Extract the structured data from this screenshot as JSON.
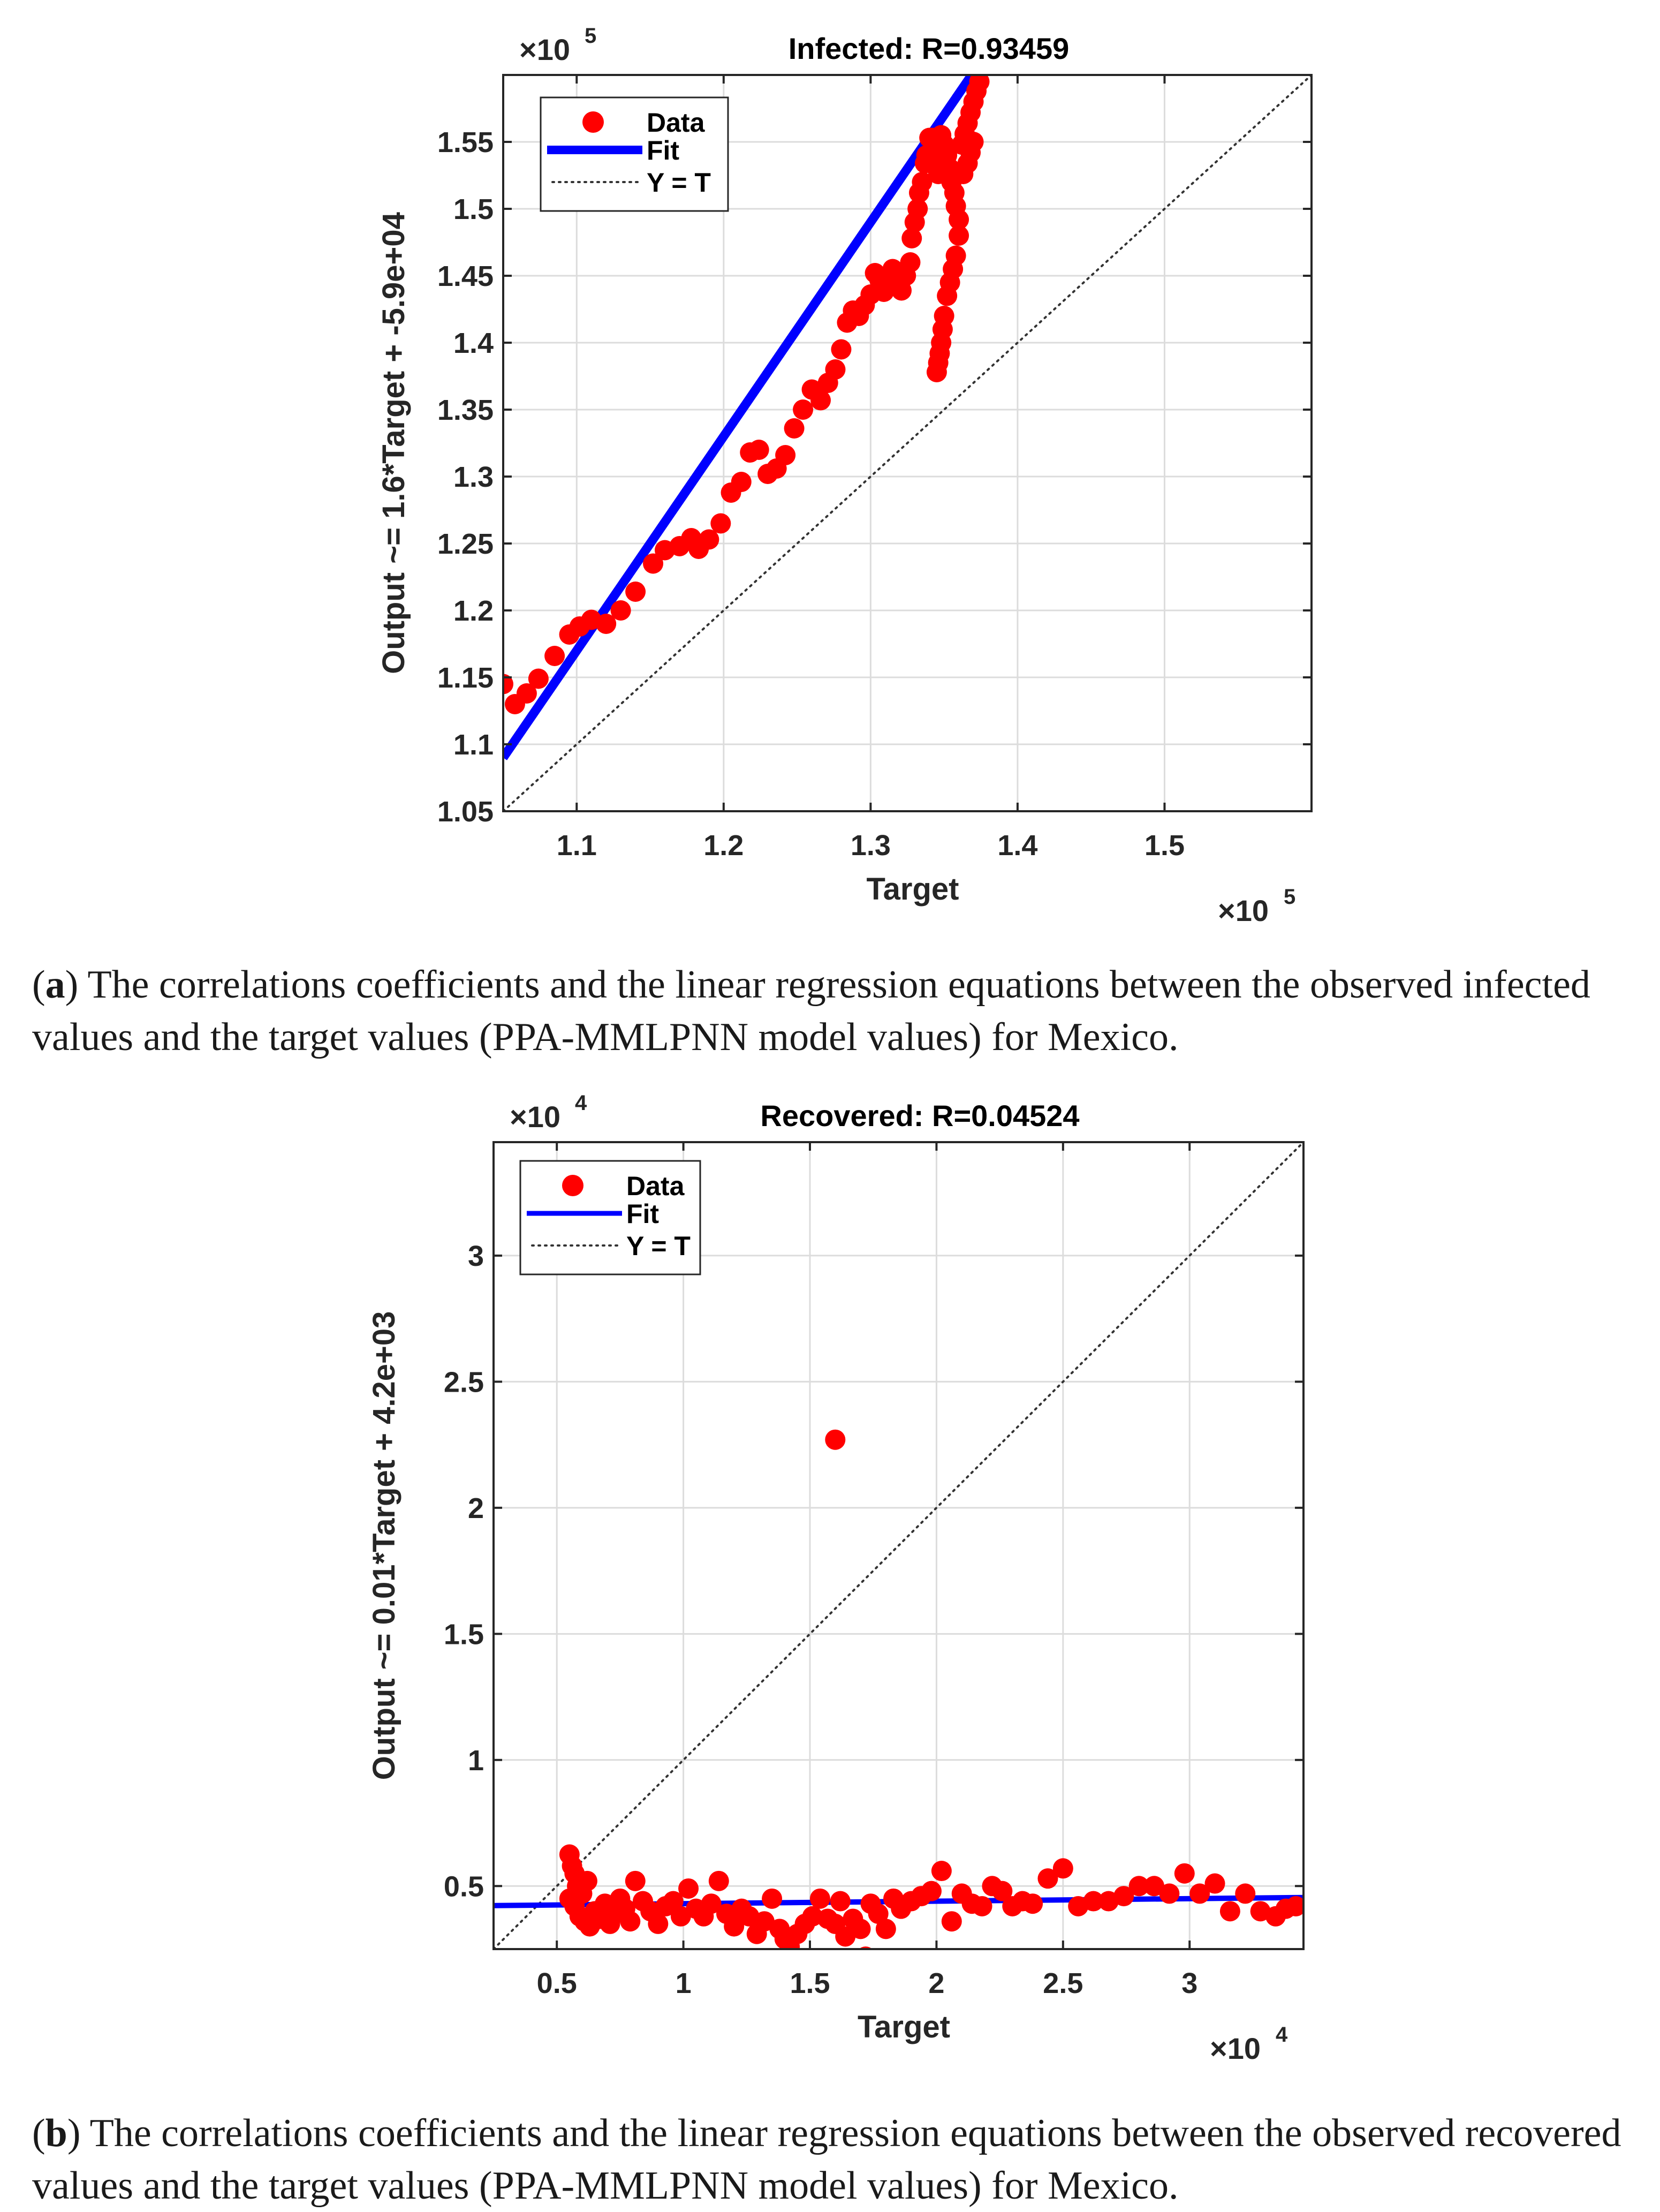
{
  "chart_data": [
    {
      "type": "scatter",
      "title": "Infected: R=0.93459",
      "xlabel": "Target",
      "ylabel": "Output ~= 1.6*Target + -5.9e+04",
      "x_multiplier": "×10",
      "x_exponent": "5",
      "y_multiplier": "×10",
      "y_exponent": "5",
      "xlim": [
        1.05,
        1.6
      ],
      "ylim": [
        1.05,
        1.6
      ],
      "xticks": [
        "1.1",
        "1.2",
        "1.3",
        "1.4",
        "1.5"
      ],
      "yticks": [
        "1.05",
        "1.1",
        "1.15",
        "1.2",
        "1.25",
        "1.3",
        "1.35",
        "1.4",
        "1.45",
        "1.5",
        "1.55"
      ],
      "legend": {
        "data": "Data",
        "fit": "Fit",
        "identity": "Y = T"
      },
      "fit": {
        "slope": 1.6,
        "intercept": -0.59
      },
      "series": [
        {
          "name": "Data",
          "color": "#ff0000",
          "points": [
            [
              1.05,
              1.145
            ],
            [
              1.058,
              1.13
            ],
            [
              1.066,
              1.138
            ],
            [
              1.074,
              1.149
            ],
            [
              1.085,
              1.166
            ],
            [
              1.095,
              1.182
            ],
            [
              1.102,
              1.188
            ],
            [
              1.11,
              1.193
            ],
            [
              1.12,
              1.19
            ],
            [
              1.13,
              1.2
            ],
            [
              1.14,
              1.214
            ],
            [
              1.152,
              1.235
            ],
            [
              1.16,
              1.245
            ],
            [
              1.17,
              1.248
            ],
            [
              1.178,
              1.254
            ],
            [
              1.183,
              1.246
            ],
            [
              1.19,
              1.253
            ],
            [
              1.198,
              1.265
            ],
            [
              1.205,
              1.288
            ],
            [
              1.212,
              1.296
            ],
            [
              1.218,
              1.318
            ],
            [
              1.224,
              1.32
            ],
            [
              1.23,
              1.302
            ],
            [
              1.236,
              1.306
            ],
            [
              1.242,
              1.316
            ],
            [
              1.248,
              1.336
            ],
            [
              1.254,
              1.35
            ],
            [
              1.26,
              1.365
            ],
            [
              1.266,
              1.357
            ],
            [
              1.271,
              1.37
            ],
            [
              1.276,
              1.38
            ],
            [
              1.28,
              1.395
            ],
            [
              1.284,
              1.415
            ],
            [
              1.288,
              1.424
            ],
            [
              1.292,
              1.42
            ],
            [
              1.296,
              1.428
            ],
            [
              1.3,
              1.436
            ],
            [
              1.303,
              1.452
            ],
            [
              1.306,
              1.447
            ],
            [
              1.309,
              1.438
            ],
            [
              1.312,
              1.444
            ],
            [
              1.315,
              1.455
            ],
            [
              1.318,
              1.447
            ],
            [
              1.321,
              1.439
            ],
            [
              1.324,
              1.45
            ],
            [
              1.327,
              1.46
            ],
            [
              1.328,
              1.478
            ],
            [
              1.33,
              1.49
            ],
            [
              1.332,
              1.5
            ],
            [
              1.333,
              1.512
            ],
            [
              1.335,
              1.52
            ],
            [
              1.337,
              1.534
            ],
            [
              1.338,
              1.54
            ],
            [
              1.34,
              1.553
            ],
            [
              1.342,
              1.553
            ],
            [
              1.344,
              1.545
            ],
            [
              1.345,
              1.535
            ],
            [
              1.346,
              1.526
            ],
            [
              1.348,
              1.555
            ],
            [
              1.35,
              1.548
            ],
            [
              1.352,
              1.54
            ],
            [
              1.354,
              1.53
            ],
            [
              1.355,
              1.52
            ],
            [
              1.357,
              1.512
            ],
            [
              1.358,
              1.502
            ],
            [
              1.36,
              1.492
            ],
            [
              1.362,
              1.548
            ],
            [
              1.364,
              1.556
            ],
            [
              1.366,
              1.564
            ],
            [
              1.368,
              1.572
            ],
            [
              1.37,
              1.58
            ],
            [
              1.372,
              1.588
            ],
            [
              1.374,
              1.595
            ],
            [
              1.36,
              1.48
            ],
            [
              1.358,
              1.465
            ],
            [
              1.356,
              1.455
            ],
            [
              1.354,
              1.445
            ],
            [
              1.352,
              1.435
            ],
            [
              1.35,
              1.42
            ],
            [
              1.349,
              1.41
            ],
            [
              1.348,
              1.4
            ],
            [
              1.347,
              1.392
            ],
            [
              1.346,
              1.385
            ],
            [
              1.345,
              1.378
            ],
            [
              1.37,
              1.55
            ],
            [
              1.368,
              1.542
            ],
            [
              1.366,
              1.534
            ],
            [
              1.363,
              1.526
            ]
          ]
        }
      ]
    },
    {
      "type": "scatter",
      "title": "Recovered: R=0.04524",
      "xlabel": "Target",
      "ylabel": "Output ~= 0.01*Target + 4.2e+03",
      "x_multiplier": "×10",
      "x_exponent": "4",
      "y_multiplier": "×10",
      "y_exponent": "4",
      "xlim": [
        0.25,
        3.45
      ],
      "ylim": [
        0.25,
        3.45
      ],
      "xticks": [
        "0.5",
        "1",
        "1.5",
        "2",
        "2.5",
        "3"
      ],
      "yticks": [
        "0.5",
        "1",
        "1.5",
        "2",
        "2.5",
        "3"
      ],
      "legend": {
        "data": "Data",
        "fit": "Fit",
        "identity": "Y = T"
      },
      "fit": {
        "slope": 0.01,
        "intercept": 0.42
      },
      "series": [
        {
          "name": "Data",
          "color": "#ff0000",
          "points": [
            [
              0.55,
              0.625
            ],
            [
              0.56,
              0.58
            ],
            [
              0.57,
              0.55
            ],
            [
              0.58,
              0.5
            ],
            [
              0.6,
              0.47
            ],
            [
              0.62,
              0.52
            ],
            [
              0.55,
              0.45
            ],
            [
              0.57,
              0.42
            ],
            [
              0.59,
              0.38
            ],
            [
              0.61,
              0.36
            ],
            [
              0.63,
              0.34
            ],
            [
              0.65,
              0.4
            ],
            [
              0.67,
              0.37
            ],
            [
              0.69,
              0.43
            ],
            [
              0.71,
              0.35
            ],
            [
              0.73,
              0.39
            ],
            [
              0.75,
              0.45
            ],
            [
              0.77,
              0.41
            ],
            [
              0.79,
              0.36
            ],
            [
              0.81,
              0.52
            ],
            [
              0.84,
              0.44
            ],
            [
              0.87,
              0.4
            ],
            [
              0.9,
              0.35
            ],
            [
              0.93,
              0.42
            ],
            [
              0.96,
              0.44
            ],
            [
              0.99,
              0.38
            ],
            [
              1.02,
              0.49
            ],
            [
              1.05,
              0.41
            ],
            [
              1.08,
              0.38
            ],
            [
              1.11,
              0.43
            ],
            [
              1.14,
              0.52
            ],
            [
              1.17,
              0.39
            ],
            [
              1.2,
              0.34
            ],
            [
              1.23,
              0.41
            ],
            [
              1.26,
              0.38
            ],
            [
              1.29,
              0.31
            ],
            [
              1.32,
              0.36
            ],
            [
              1.35,
              0.45
            ],
            [
              1.38,
              0.33
            ],
            [
              1.4,
              0.29
            ],
            [
              1.42,
              0.26
            ],
            [
              1.45,
              0.31
            ],
            [
              1.48,
              0.35
            ],
            [
              1.51,
              0.38
            ],
            [
              1.54,
              0.45
            ],
            [
              1.57,
              0.37
            ],
            [
              1.6,
              0.35
            ],
            [
              1.62,
              0.44
            ],
            [
              1.64,
              0.3
            ],
            [
              1.67,
              0.37
            ],
            [
              1.7,
              0.33
            ],
            [
              1.72,
              0.22
            ],
            [
              1.74,
              0.43
            ],
            [
              1.77,
              0.39
            ],
            [
              1.8,
              0.33
            ],
            [
              1.83,
              0.45
            ],
            [
              1.86,
              0.41
            ],
            [
              1.9,
              0.44
            ],
            [
              1.94,
              0.46
            ],
            [
              1.98,
              0.48
            ],
            [
              2.02,
              0.56
            ],
            [
              2.06,
              0.36
            ],
            [
              2.1,
              0.47
            ],
            [
              2.14,
              0.43
            ],
            [
              2.18,
              0.42
            ],
            [
              2.22,
              0.5
            ],
            [
              2.26,
              0.48
            ],
            [
              2.3,
              0.42
            ],
            [
              2.34,
              0.44
            ],
            [
              2.38,
              0.43
            ],
            [
              2.44,
              0.53
            ],
            [
              2.5,
              0.57
            ],
            [
              2.56,
              0.42
            ],
            [
              2.62,
              0.44
            ],
            [
              2.68,
              0.44
            ],
            [
              2.74,
              0.46
            ],
            [
              2.8,
              0.5
            ],
            [
              2.86,
              0.5
            ],
            [
              2.92,
              0.47
            ],
            [
              2.98,
              0.55
            ],
            [
              3.04,
              0.47
            ],
            [
              3.1,
              0.51
            ],
            [
              3.16,
              0.4
            ],
            [
              3.22,
              0.47
            ],
            [
              3.28,
              0.4
            ],
            [
              3.34,
              0.38
            ],
            [
              3.38,
              0.41
            ],
            [
              3.42,
              0.42
            ],
            [
              1.6,
              2.27
            ]
          ]
        }
      ]
    }
  ],
  "captions": [
    {
      "label": "(a)",
      "text": " The correlations coefficients and the linear regression equations between the observed infected values and the target values (PPA-MMLPNN model values) for Mexico."
    },
    {
      "label": "(b)",
      "text": " The correlations coefficients and the linear regression equations between the observed recovered values and the target values (PPA-MMLPNN model values) for Mexico."
    }
  ]
}
